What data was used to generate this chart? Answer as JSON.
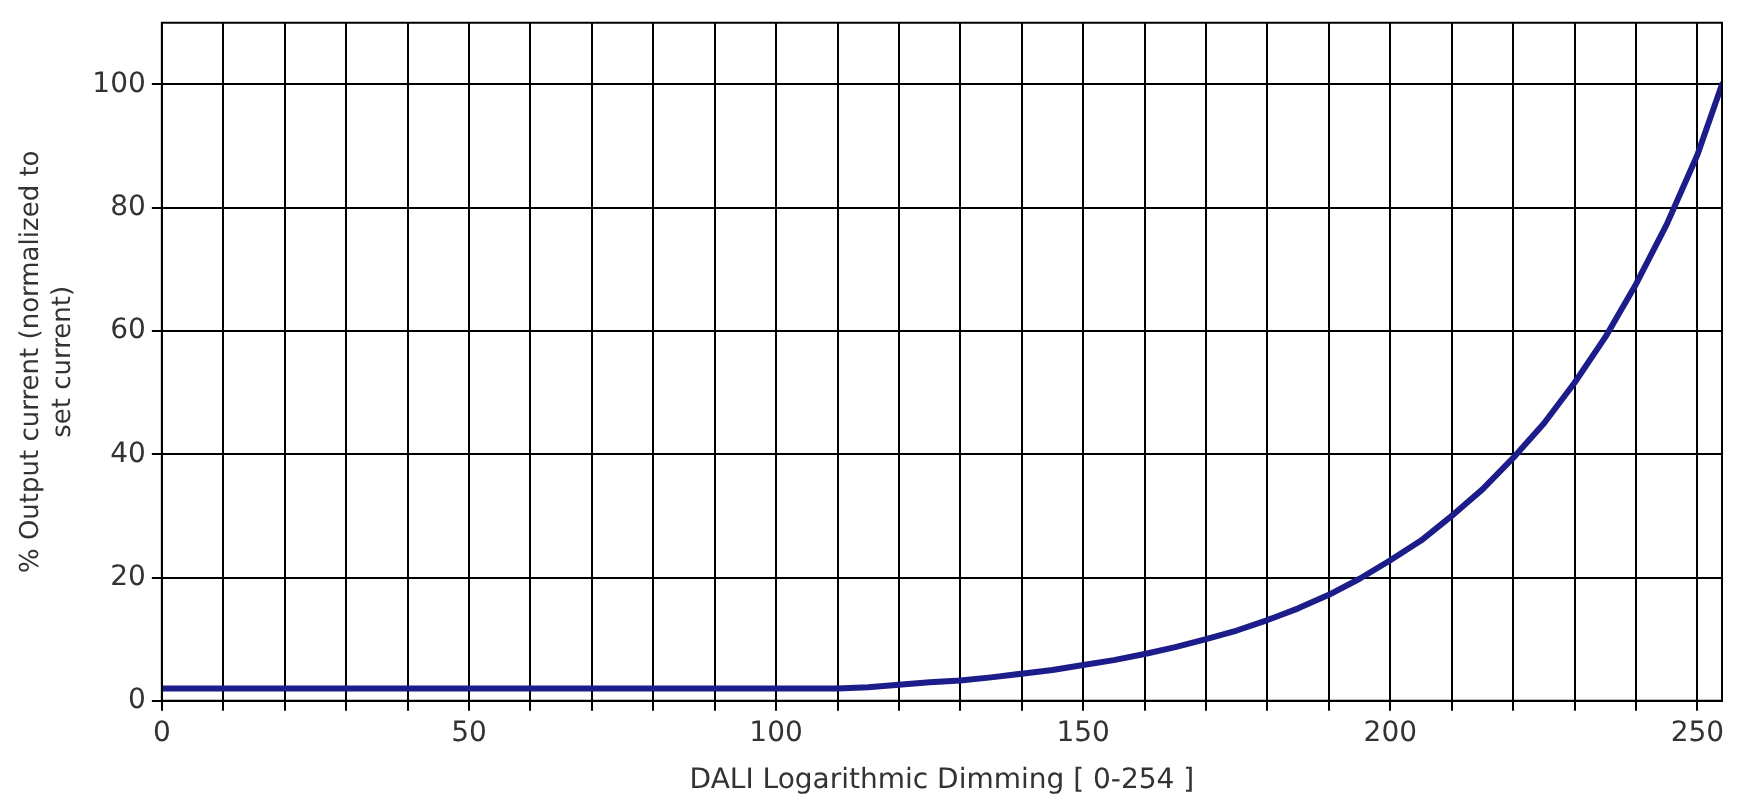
{
  "chart_data": {
    "type": "line",
    "xlabel": "DALI Logarithmic Dimming [ 0-254 ]",
    "ylabel": "% Output current (normalized to set current)",
    "xlim": [
      0,
      254
    ],
    "ylim": [
      0,
      110
    ],
    "xticks": [
      0,
      {
        "value": 10,
        "label": null
      },
      {
        "value": 20,
        "label": null
      },
      {
        "value": 30,
        "label": null
      },
      {
        "value": 40,
        "label": null
      },
      50,
      {
        "value": 60,
        "label": null
      },
      {
        "value": 70,
        "label": null
      },
      {
        "value": 80,
        "label": null
      },
      {
        "value": 90,
        "label": null
      },
      100,
      {
        "value": 110,
        "label": null
      },
      {
        "value": 120,
        "label": null
      },
      {
        "value": 130,
        "label": null
      },
      {
        "value": 140,
        "label": null
      },
      150,
      {
        "value": 160,
        "label": null
      },
      {
        "value": 170,
        "label": null
      },
      {
        "value": 180,
        "label": null
      },
      {
        "value": 190,
        "label": null
      },
      200,
      {
        "value": 210,
        "label": null
      },
      {
        "value": 220,
        "label": null
      },
      {
        "value": 230,
        "label": null
      },
      {
        "value": 240,
        "label": null
      },
      250
    ],
    "yticks": [
      0,
      20,
      40,
      60,
      80,
      100
    ],
    "grid": true,
    "legend": false,
    "marker": "none",
    "line_style": "solid",
    "series": [
      {
        "color": "#1c1c8a",
        "x": [
          0,
          50,
          100,
          110,
          115,
          120,
          125,
          130,
          135,
          140,
          145,
          150,
          155,
          160,
          165,
          170,
          175,
          180,
          185,
          190,
          195,
          200,
          205,
          210,
          215,
          220,
          225,
          230,
          235,
          240,
          245,
          250,
          254
        ],
        "values": [
          2,
          2,
          2,
          2,
          2.2,
          2.6,
          3,
          3.3,
          3.8,
          4.4,
          5,
          5.8,
          6.6,
          7.6,
          8.7,
          10,
          11.4,
          13.1,
          15,
          17.2,
          19.8,
          22.8,
          26,
          30,
          34.3,
          39.4,
          45,
          51.6,
          59,
          67.6,
          77.3,
          88.6,
          100
        ]
      }
    ]
  }
}
